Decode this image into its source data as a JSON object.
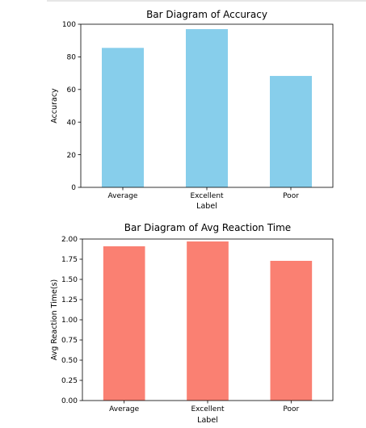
{
  "chart_data": [
    {
      "type": "bar",
      "title": "Bar Diagram of Accuracy",
      "xlabel": "Label",
      "ylabel": "Accuracy",
      "categories": [
        "Average",
        "Excellent",
        "Poor"
      ],
      "values": [
        85.5,
        97,
        68.3
      ],
      "ylim": [
        0,
        100
      ],
      "yticks": [
        "0",
        "20",
        "40",
        "60",
        "80",
        "100"
      ],
      "ytick_values": [
        0,
        20,
        40,
        60,
        80,
        100
      ],
      "color": "#87ceeb",
      "grid": false,
      "legend": "none"
    },
    {
      "type": "bar",
      "title": "Bar Diagram of Avg Reaction Time",
      "xlabel": "Label",
      "ylabel": "Avg Reaction Time(s)",
      "categories": [
        "Average",
        "Excellent",
        "Poor"
      ],
      "values": [
        1.91,
        1.97,
        1.73
      ],
      "ylim": [
        0,
        2.0
      ],
      "yticks": [
        "0.00",
        "0.25",
        "0.50",
        "0.75",
        "1.00",
        "1.25",
        "1.50",
        "1.75",
        "2.00"
      ],
      "ytick_values": [
        0,
        0.25,
        0.5,
        0.75,
        1.0,
        1.25,
        1.5,
        1.75,
        2.0
      ],
      "color": "#fa8072",
      "grid": false,
      "legend": "none"
    }
  ]
}
